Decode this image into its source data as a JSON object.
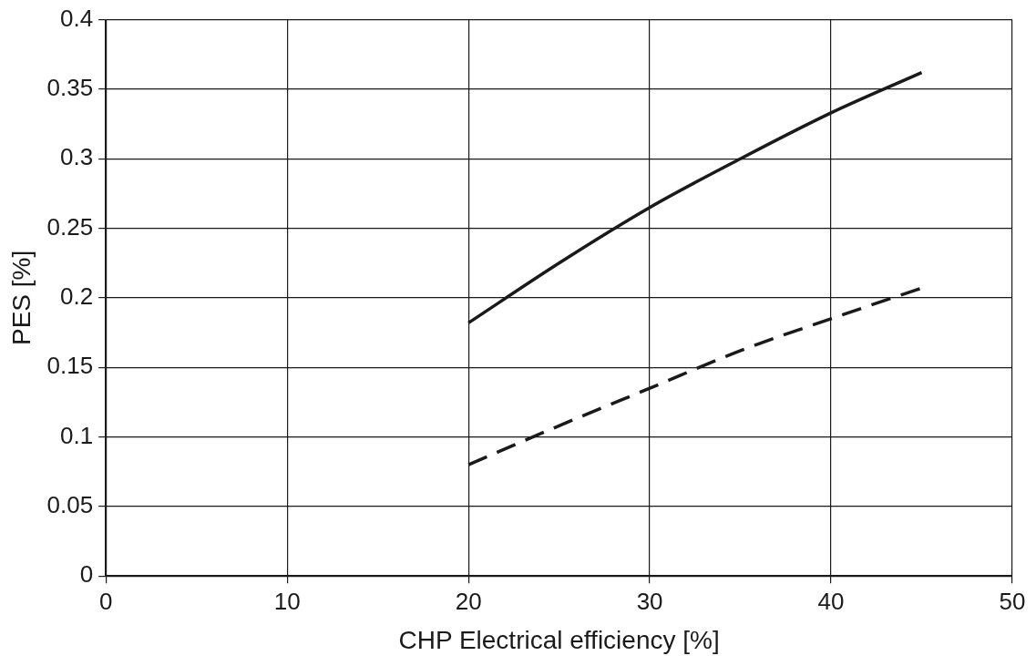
{
  "chart_data": {
    "type": "line",
    "xlabel": "CHP Electrical efficiency [%]",
    "ylabel": "PES [%]",
    "x": [
      20,
      25,
      30,
      35,
      40,
      45
    ],
    "series": [
      {
        "color": "#1a1a1a",
        "line_style": "solid",
        "values": [
          0.182,
          0.225,
          0.265,
          0.3,
          0.333,
          0.362
        ]
      },
      {
        "color": "#1a1a1a",
        "line_style": "dashed",
        "values": [
          0.08,
          0.108,
          0.135,
          0.162,
          0.185,
          0.207
        ]
      }
    ],
    "xlim": [
      0,
      50
    ],
    "xticks": [
      0,
      10,
      20,
      30,
      40,
      50
    ],
    "ylim": [
      0,
      0.4
    ],
    "yticks": [
      0,
      0.05,
      0.1,
      0.15,
      0.2,
      0.25,
      0.3,
      0.35,
      0.4
    ],
    "grid": true,
    "legend": false,
    "marker": "none"
  }
}
